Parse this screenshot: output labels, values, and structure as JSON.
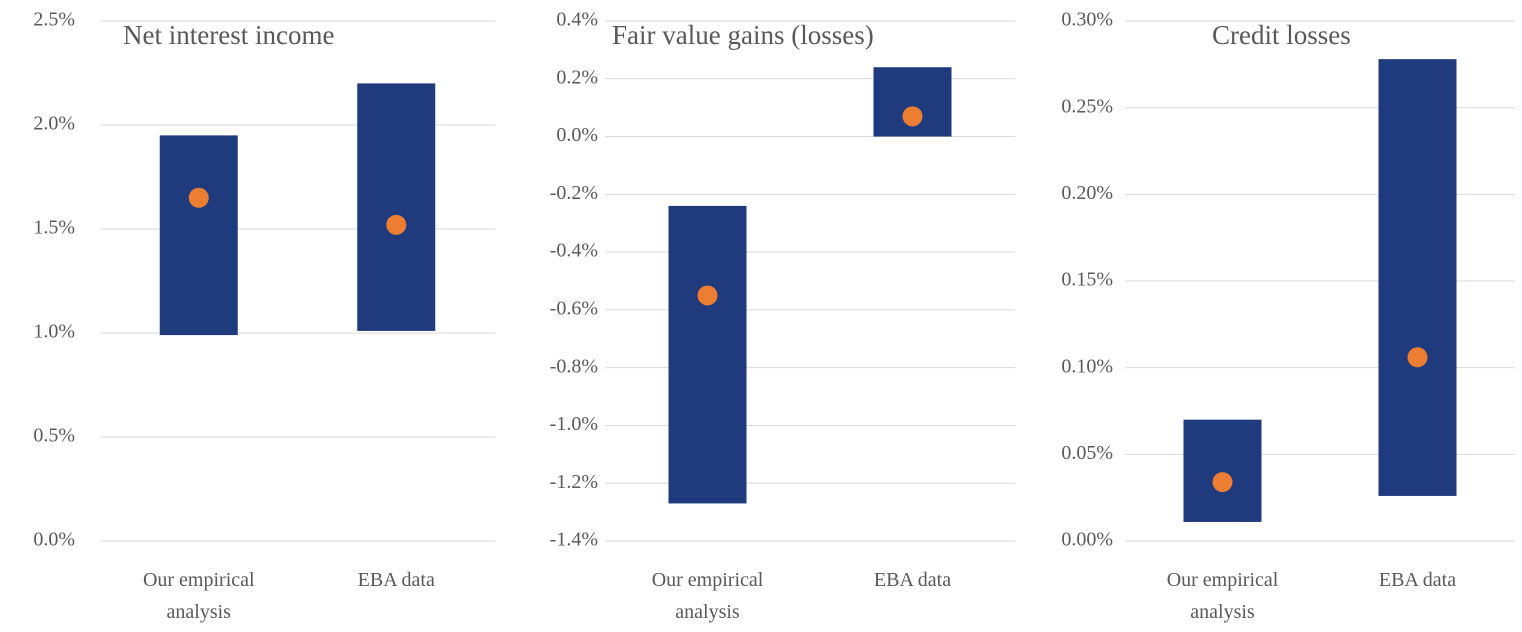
{
  "chart_data": [
    {
      "type": "floating-bar",
      "title": "Net interest income",
      "categories": [
        "Our empirical analysis",
        "EBA data"
      ],
      "low": [
        0.99,
        1.01
      ],
      "high": [
        1.95,
        2.2
      ],
      "points": [
        1.65,
        1.52
      ],
      "bar_color": "#203a7e",
      "point_color": "#ed7d31",
      "ylim": [
        0,
        2.5
      ],
      "yticks": [
        {
          "value": 0,
          "label": "0.0%"
        },
        {
          "value": 0.5,
          "label": "0.5%"
        },
        {
          "value": 1,
          "label": "1.0%"
        },
        {
          "value": 1.5,
          "label": "1.5%"
        },
        {
          "value": 2,
          "label": "2.0%"
        },
        {
          "value": 2.5,
          "label": "2.5%"
        }
      ],
      "grid": true
    },
    {
      "type": "floating-bar",
      "title": "Fair value gains (losses)",
      "categories": [
        "Our empirical analysis",
        "EBA data"
      ],
      "low": [
        -1.27,
        0
      ],
      "high": [
        -0.24,
        0.24
      ],
      "points": [
        -0.55,
        0.07
      ],
      "bar_color": "#203a7e",
      "point_color": "#ed7d31",
      "ylim": [
        -1.4,
        0.4
      ],
      "yticks": [
        {
          "value": -1.4,
          "label": "-1.4%"
        },
        {
          "value": -1.2,
          "label": "-1.2%"
        },
        {
          "value": -1,
          "label": "-1.0%"
        },
        {
          "value": -0.8,
          "label": "-0.8%"
        },
        {
          "value": -0.6,
          "label": "-0.6%"
        },
        {
          "value": -0.4,
          "label": "-0.4%"
        },
        {
          "value": -0.2,
          "label": "-0.2%"
        },
        {
          "value": 0,
          "label": "0.0%"
        },
        {
          "value": 0.2,
          "label": "0.2%"
        },
        {
          "value": 0.4,
          "label": "0.4%"
        }
      ],
      "grid": true
    },
    {
      "type": "floating-bar",
      "title": "Credit losses",
      "categories": [
        "Our empirical analysis",
        "EBA data"
      ],
      "low": [
        0.011,
        0.026
      ],
      "high": [
        0.07,
        0.278
      ],
      "points": [
        0.034,
        0.106
      ],
      "bar_color": "#203a7e",
      "point_color": "#ed7d31",
      "ylim": [
        0,
        0.3
      ],
      "yticks": [
        {
          "value": 0,
          "label": "0.00%"
        },
        {
          "value": 0.05,
          "label": "0.05%"
        },
        {
          "value": 0.1,
          "label": "0.10%"
        },
        {
          "value": 0.15,
          "label": "0.15%"
        },
        {
          "value": 0.2,
          "label": "0.20%"
        },
        {
          "value": 0.25,
          "label": "0.25%"
        },
        {
          "value": 0.3,
          "label": "0.30%"
        }
      ],
      "grid": true
    }
  ]
}
